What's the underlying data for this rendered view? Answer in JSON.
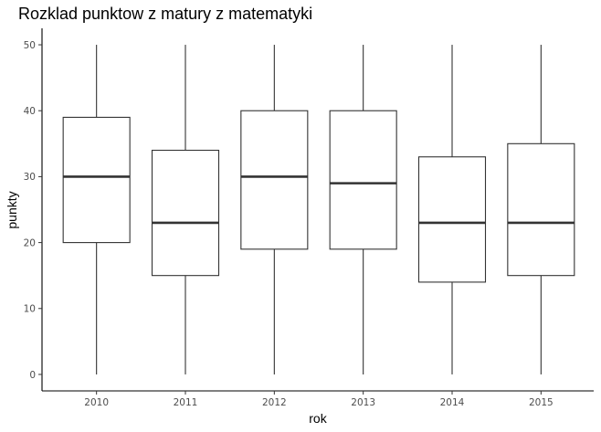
{
  "chart_data": {
    "type": "boxplot",
    "title": "Rozklad punktow z matury z matematyki",
    "xlabel": "rok",
    "ylabel": "punkty",
    "categories": [
      "2010",
      "2011",
      "2012",
      "2013",
      "2014",
      "2015"
    ],
    "yticks": [
      0,
      10,
      20,
      30,
      40,
      50
    ],
    "ytick_labels": [
      "0",
      "10",
      "20",
      "30",
      "40",
      "50"
    ],
    "ylim": [
      -2.5,
      52.5
    ],
    "grid": false,
    "boxes": [
      {
        "category": "2010",
        "min": 0,
        "q1": 20,
        "median": 30,
        "q3": 39,
        "max": 50
      },
      {
        "category": "2011",
        "min": 0,
        "q1": 15,
        "median": 23,
        "q3": 34,
        "max": 50
      },
      {
        "category": "2012",
        "min": 0,
        "q1": 19,
        "median": 30,
        "q3": 40,
        "max": 50
      },
      {
        "category": "2013",
        "min": 0,
        "q1": 19,
        "median": 29,
        "q3": 40,
        "max": 50
      },
      {
        "category": "2014",
        "min": 0,
        "q1": 14,
        "median": 23,
        "q3": 33,
        "max": 50
      },
      {
        "category": "2015",
        "min": 0,
        "q1": 15,
        "median": 23,
        "q3": 35,
        "max": 50
      }
    ]
  }
}
